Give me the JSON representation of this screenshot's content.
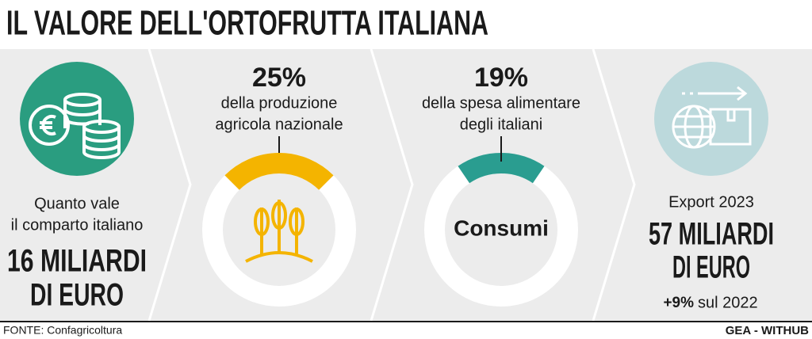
{
  "title": "IL VALORE DELL'ORTOFRUTTA ITALIANA",
  "panels": [
    {
      "lines": [
        "Quanto vale",
        "il comparto italiano"
      ],
      "figure": [
        "16 MILIARDI",
        "DI EURO"
      ]
    },
    {
      "lines": [
        "della produzione",
        "agricola nazionale"
      ]
    },
    {
      "lines": [
        "della spesa alimentare",
        "degli italiani"
      ],
      "center_label": "Consumi"
    },
    {
      "lines": [
        "Export 2023"
      ],
      "figure": [
        "57 MILIARDI",
        "DI EURO"
      ],
      "change": "+9%",
      "change_note": "sul 2022"
    }
  ],
  "chart_data": [
    {
      "type": "donut",
      "values": [
        25
      ],
      "value_labels": [
        "25%"
      ],
      "color": "#f4b400"
    },
    {
      "type": "donut",
      "values": [
        19
      ],
      "value_labels": [
        "19%"
      ],
      "color": "#2a9d90"
    }
  ],
  "source": "FONTE: Confagricoltura",
  "credit": "GEA - WITHUB"
}
